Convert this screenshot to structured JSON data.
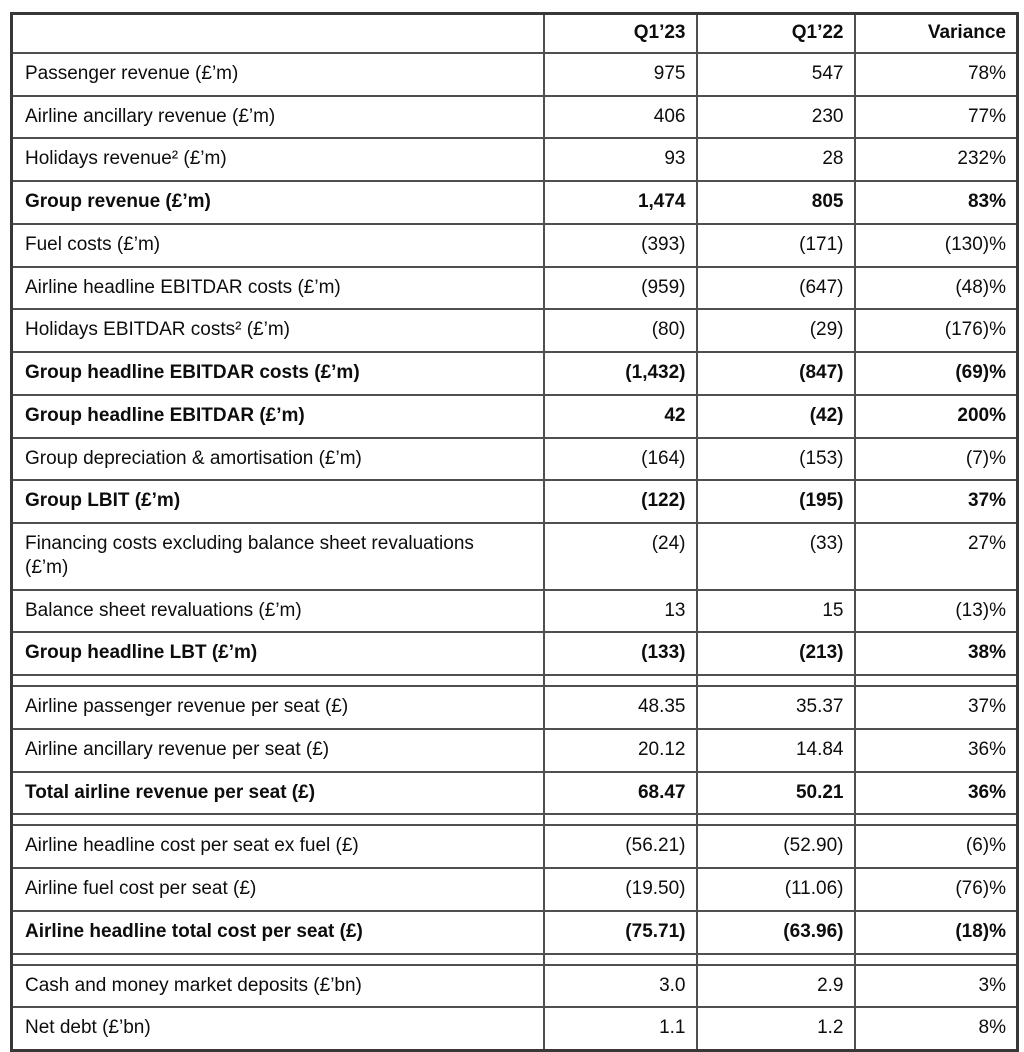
{
  "table": {
    "headers": [
      "",
      "Q1’23",
      "Q1’22",
      "Variance"
    ],
    "rows": [
      {
        "label": "Passenger revenue (£’m)",
        "q1_23": "975",
        "q1_22": "547",
        "variance": "78%",
        "bold": false
      },
      {
        "label": "Airline ancillary revenue (£’m)",
        "q1_23": "406",
        "q1_22": "230",
        "variance": "77%",
        "bold": false
      },
      {
        "label": "Holidays revenue² (£’m)",
        "q1_23": "93",
        "q1_22": "28",
        "variance": "232%",
        "bold": false
      },
      {
        "label": "Group revenue (£’m)",
        "q1_23": "1,474",
        "q1_22": "805",
        "variance": "83%",
        "bold": true
      },
      {
        "label": "Fuel costs (£’m)",
        "q1_23": "(393)",
        "q1_22": "(171)",
        "variance": "(130)%",
        "bold": false
      },
      {
        "label": "Airline headline EBITDAR costs (£’m)",
        "q1_23": "(959)",
        "q1_22": "(647)",
        "variance": "(48)%",
        "bold": false
      },
      {
        "label": "Holidays EBITDAR costs² (£’m)",
        "q1_23": "(80)",
        "q1_22": "(29)",
        "variance": "(176)%",
        "bold": false
      },
      {
        "label": "Group headline EBITDAR costs (£’m)",
        "q1_23": "(1,432)",
        "q1_22": "(847)",
        "variance": "(69)%",
        "bold": true
      },
      {
        "label": "Group headline EBITDAR (£’m)",
        "q1_23": "42",
        "q1_22": "(42)",
        "variance": "200%",
        "bold": true
      },
      {
        "label": "Group depreciation & amortisation (£’m)",
        "q1_23": "(164)",
        "q1_22": "(153)",
        "variance": "(7)%",
        "bold": false
      },
      {
        "label": "Group LBIT (£’m)",
        "q1_23": "(122)",
        "q1_22": "(195)",
        "variance": "37%",
        "bold": true
      },
      {
        "label": "Financing costs excluding balance sheet revaluations\n(£’m)",
        "q1_23": "(24)",
        "q1_22": "(33)",
        "variance": "27%",
        "bold": false
      },
      {
        "label": "Balance sheet revaluations (£’m)",
        "q1_23": "13",
        "q1_22": "15",
        "variance": "(13)%",
        "bold": false
      },
      {
        "label": "Group headline LBT (£’m)",
        "q1_23": "(133)",
        "q1_22": "(213)",
        "variance": "38%",
        "bold": true
      },
      {
        "type": "spacer"
      },
      {
        "label": "Airline passenger revenue per seat (£)",
        "q1_23": "48.35",
        "q1_22": "35.37",
        "variance": "37%",
        "bold": false
      },
      {
        "label": "Airline ancillary revenue per seat (£)",
        "q1_23": "20.12",
        "q1_22": "14.84",
        "variance": "36%",
        "bold": false
      },
      {
        "label": "Total airline revenue per seat (£)",
        "q1_23": "68.47",
        "q1_22": "50.21",
        "variance": "36%",
        "bold": true
      },
      {
        "type": "spacer"
      },
      {
        "label": "Airline headline cost per seat ex fuel (£)",
        "q1_23": "(56.21)",
        "q1_22": "(52.90)",
        "variance": "(6)%",
        "bold": false
      },
      {
        "label": "Airline fuel cost per seat (£)",
        "q1_23": "(19.50)",
        "q1_22": "(11.06)",
        "variance": "(76)%",
        "bold": false
      },
      {
        "label": "Airline headline total cost per seat (£)",
        "q1_23": "(75.71)",
        "q1_22": "(63.96)",
        "variance": "(18)%",
        "bold": true
      },
      {
        "type": "spacer"
      },
      {
        "label": "Cash and money market deposits (£’bn)",
        "q1_23": "3.0",
        "q1_22": "2.9",
        "variance": "3%",
        "bold": false
      },
      {
        "label": "Net debt (£’bn)",
        "q1_23": "1.1",
        "q1_22": "1.2",
        "variance": "8%",
        "bold": false
      }
    ]
  }
}
